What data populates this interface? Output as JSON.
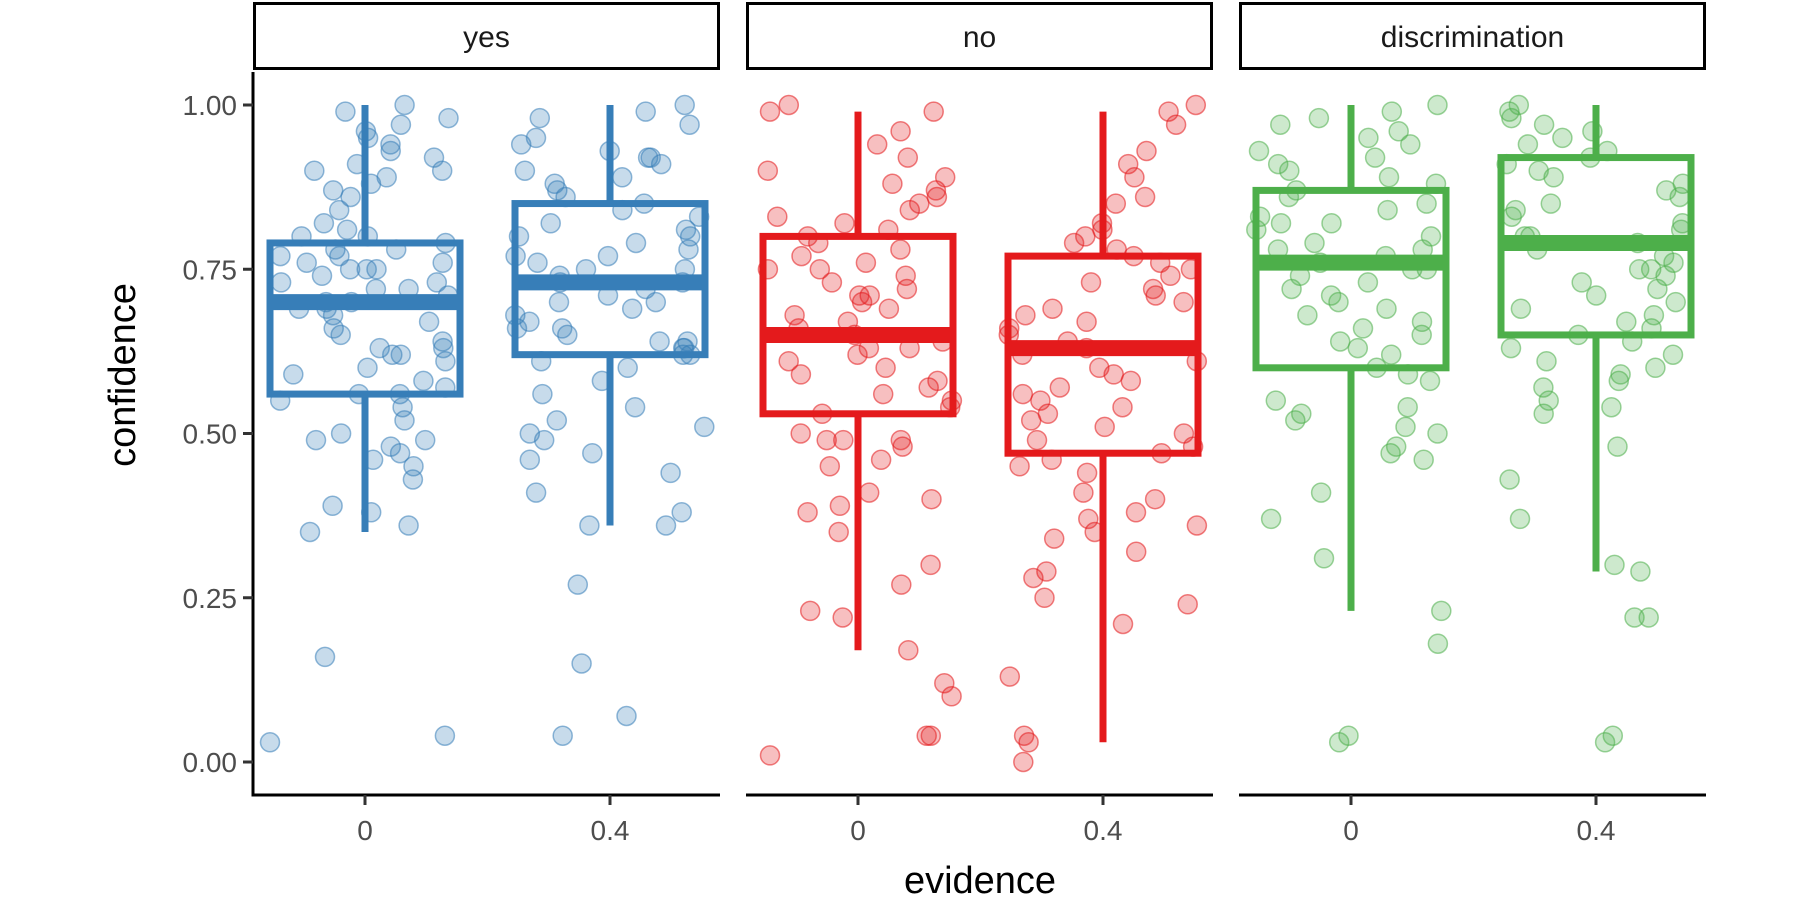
{
  "chart_data": {
    "type": "boxplot",
    "x_label": "evidence",
    "y_label": "confidence",
    "y_range": [
      0,
      1
    ],
    "y_ticks": [
      "0.00",
      "0.25",
      "0.50",
      "0.75",
      "1.00"
    ],
    "y_tick_values": [
      0,
      0.25,
      0.5,
      0.75,
      1.0
    ],
    "x_categories": [
      "0",
      "0.4"
    ],
    "grid": false,
    "legend": "none",
    "facets": [
      {
        "label": "yes",
        "color": "#377EB8",
        "boxes": [
          {
            "x": "0",
            "whisker_low": 0.35,
            "q1": 0.56,
            "median": 0.7,
            "q3": 0.79,
            "whisker_high": 1.0,
            "points": [
              0.03,
              0.04,
              0.16,
              0.35,
              0.36,
              0.38,
              0.39,
              0.43,
              0.45,
              0.46,
              0.47,
              0.48,
              0.49,
              0.49,
              0.5,
              0.52,
              0.54,
              0.55,
              0.56,
              0.56,
              0.57,
              0.58,
              0.59,
              0.6,
              0.61,
              0.62,
              0.62,
              0.63,
              0.63,
              0.64,
              0.65,
              0.66,
              0.67,
              0.68,
              0.69,
              0.69,
              0.7,
              0.7,
              0.71,
              0.72,
              0.72,
              0.73,
              0.73,
              0.74,
              0.75,
              0.75,
              0.75,
              0.76,
              0.76,
              0.77,
              0.77,
              0.78,
              0.78,
              0.79,
              0.8,
              0.8,
              0.81,
              0.82,
              0.84,
              0.86,
              0.87,
              0.88,
              0.89,
              0.9,
              0.9,
              0.91,
              0.92,
              0.93,
              0.94,
              0.95,
              0.96,
              0.97,
              0.98,
              0.99,
              1.0
            ]
          },
          {
            "x": "0.4",
            "whisker_low": 0.36,
            "q1": 0.62,
            "median": 0.73,
            "q3": 0.85,
            "whisker_high": 1.0,
            "points": [
              0.04,
              0.07,
              0.15,
              0.27,
              0.36,
              0.36,
              0.38,
              0.41,
              0.44,
              0.46,
              0.47,
              0.49,
              0.5,
              0.51,
              0.52,
              0.54,
              0.56,
              0.58,
              0.6,
              0.61,
              0.62,
              0.62,
              0.63,
              0.63,
              0.64,
              0.64,
              0.65,
              0.66,
              0.66,
              0.67,
              0.68,
              0.69,
              0.7,
              0.7,
              0.71,
              0.72,
              0.73,
              0.73,
              0.74,
              0.75,
              0.75,
              0.76,
              0.77,
              0.77,
              0.78,
              0.79,
              0.8,
              0.8,
              0.81,
              0.82,
              0.83,
              0.84,
              0.85,
              0.86,
              0.87,
              0.88,
              0.89,
              0.9,
              0.91,
              0.92,
              0.92,
              0.93,
              0.94,
              0.95,
              0.97,
              0.98,
              0.99,
              1.0
            ]
          }
        ]
      },
      {
        "label": "no",
        "color": "#E41A1C",
        "boxes": [
          {
            "x": "0",
            "whisker_low": 0.17,
            "q1": 0.53,
            "median": 0.65,
            "q3": 0.8,
            "whisker_high": 0.99,
            "points": [
              0.01,
              0.04,
              0.04,
              0.1,
              0.12,
              0.17,
              0.22,
              0.23,
              0.27,
              0.3,
              0.35,
              0.38,
              0.39,
              0.4,
              0.41,
              0.45,
              0.46,
              0.48,
              0.49,
              0.49,
              0.49,
              0.5,
              0.53,
              0.54,
              0.55,
              0.56,
              0.57,
              0.58,
              0.59,
              0.6,
              0.61,
              0.62,
              0.63,
              0.63,
              0.64,
              0.65,
              0.66,
              0.67,
              0.68,
              0.69,
              0.7,
              0.71,
              0.71,
              0.72,
              0.73,
              0.74,
              0.75,
              0.75,
              0.76,
              0.77,
              0.78,
              0.79,
              0.8,
              0.81,
              0.82,
              0.83,
              0.84,
              0.85,
              0.86,
              0.87,
              0.88,
              0.89,
              0.9,
              0.92,
              0.94,
              0.96,
              0.99,
              0.99,
              1.0
            ]
          },
          {
            "x": "0.4",
            "whisker_low": 0.03,
            "q1": 0.47,
            "median": 0.63,
            "q3": 0.77,
            "whisker_high": 0.99,
            "points": [
              0.0,
              0.03,
              0.04,
              0.13,
              0.21,
              0.24,
              0.25,
              0.28,
              0.29,
              0.32,
              0.34,
              0.35,
              0.36,
              0.37,
              0.38,
              0.4,
              0.41,
              0.44,
              0.45,
              0.46,
              0.47,
              0.48,
              0.49,
              0.5,
              0.51,
              0.52,
              0.53,
              0.54,
              0.55,
              0.56,
              0.57,
              0.58,
              0.59,
              0.6,
              0.61,
              0.62,
              0.63,
              0.64,
              0.65,
              0.66,
              0.67,
              0.68,
              0.69,
              0.7,
              0.71,
              0.72,
              0.73,
              0.74,
              0.75,
              0.76,
              0.77,
              0.78,
              0.79,
              0.8,
              0.81,
              0.82,
              0.85,
              0.86,
              0.89,
              0.91,
              0.93,
              0.97,
              0.99,
              1.0
            ]
          }
        ]
      },
      {
        "label": "discrimination",
        "color": "#4DAF4A",
        "boxes": [
          {
            "x": "0",
            "whisker_low": 0.23,
            "q1": 0.6,
            "median": 0.76,
            "q3": 0.87,
            "whisker_high": 1.0,
            "points": [
              0.03,
              0.04,
              0.18,
              0.23,
              0.31,
              0.37,
              0.41,
              0.46,
              0.47,
              0.48,
              0.5,
              0.51,
              0.52,
              0.53,
              0.54,
              0.55,
              0.58,
              0.59,
              0.6,
              0.62,
              0.63,
              0.64,
              0.65,
              0.66,
              0.67,
              0.68,
              0.69,
              0.7,
              0.71,
              0.72,
              0.73,
              0.74,
              0.75,
              0.75,
              0.76,
              0.77,
              0.78,
              0.78,
              0.79,
              0.8,
              0.81,
              0.82,
              0.82,
              0.83,
              0.84,
              0.85,
              0.86,
              0.87,
              0.88,
              0.89,
              0.9,
              0.91,
              0.92,
              0.93,
              0.94,
              0.95,
              0.96,
              0.97,
              0.98,
              0.99,
              1.0
            ]
          },
          {
            "x": "0.4",
            "whisker_low": 0.29,
            "q1": 0.65,
            "median": 0.79,
            "q3": 0.92,
            "whisker_high": 1.0,
            "points": [
              0.03,
              0.04,
              0.22,
              0.22,
              0.29,
              0.3,
              0.37,
              0.43,
              0.48,
              0.53,
              0.54,
              0.55,
              0.57,
              0.58,
              0.59,
              0.6,
              0.61,
              0.62,
              0.63,
              0.64,
              0.65,
              0.66,
              0.67,
              0.68,
              0.69,
              0.7,
              0.71,
              0.72,
              0.73,
              0.74,
              0.75,
              0.75,
              0.76,
              0.77,
              0.78,
              0.79,
              0.8,
              0.8,
              0.81,
              0.82,
              0.83,
              0.84,
              0.85,
              0.86,
              0.87,
              0.88,
              0.89,
              0.9,
              0.91,
              0.92,
              0.93,
              0.94,
              0.95,
              0.96,
              0.97,
              0.98,
              0.99,
              1.0
            ]
          }
        ]
      }
    ]
  }
}
